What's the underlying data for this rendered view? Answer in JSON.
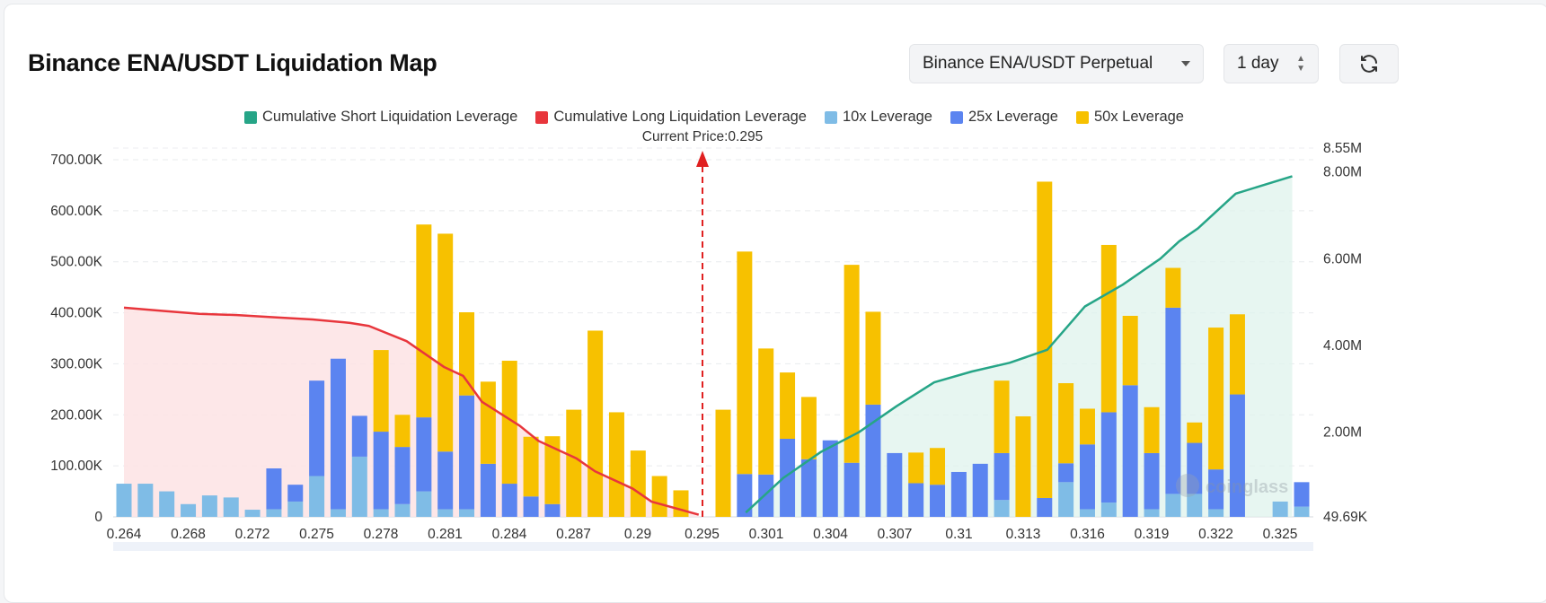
{
  "header": {
    "title": "Binance ENA/USDT Liquidation Map",
    "exchange_select": "Binance ENA/USDT Perpetual",
    "range_select": "1 day"
  },
  "icons": {
    "dropdown": "caret-down-icon",
    "stepper": "up-down-icon",
    "refresh": "refresh-icon"
  },
  "colors": {
    "short_cum": "#26a587",
    "long_cum": "#e8363c",
    "lev10": "#7fbce6",
    "lev25": "#5b84f0",
    "lev50": "#f7c100"
  },
  "chart_data": {
    "type": "bar",
    "current_price_label": "Current Price:0.295",
    "current_price": 0.295,
    "left_axis": {
      "ticks": [
        "700.00K",
        "600.00K",
        "500.00K",
        "400.00K",
        "300.00K",
        "200.00K",
        "100.00K",
        "0"
      ],
      "ylim": [
        0,
        700000
      ]
    },
    "right_axis": {
      "ticks": [
        "8.55M",
        "8.00M",
        "6.00M",
        "4.00M",
        "2.00M",
        "49.69K"
      ],
      "ylim": [
        49690,
        8550000
      ]
    },
    "x_ticks": [
      "0.264",
      "0.268",
      "0.272",
      "0.275",
      "0.278",
      "0.281",
      "0.284",
      "0.287",
      "0.29",
      "0.295",
      "0.301",
      "0.304",
      "0.307",
      "0.31",
      "0.313",
      "0.316",
      "0.319",
      "0.322",
      "0.325"
    ],
    "legend": [
      {
        "name": "Cumulative Short Liquidation Leverage",
        "color": "#26a587"
      },
      {
        "name": "Cumulative Long Liquidation Leverage",
        "color": "#e8363c"
      },
      {
        "name": "10x Leverage",
        "color": "#7fbce6"
      },
      {
        "name": "25x Leverage",
        "color": "#5b84f0"
      },
      {
        "name": "50x Leverage",
        "color": "#f7c100"
      }
    ],
    "bars_left": [
      {
        "lev10": 65000,
        "lev25": 0,
        "lev50": 0
      },
      {
        "lev10": 65000,
        "lev25": 0,
        "lev50": 0
      },
      {
        "lev10": 50000,
        "lev25": 0,
        "lev50": 0
      },
      {
        "lev10": 25000,
        "lev25": 0,
        "lev50": 0
      },
      {
        "lev10": 42000,
        "lev25": 0,
        "lev50": 0
      },
      {
        "lev10": 38000,
        "lev25": 0,
        "lev50": 0
      },
      {
        "lev10": 14000,
        "lev25": 0,
        "lev50": 0
      },
      {
        "lev10": 15000,
        "lev25": 80000,
        "lev50": 0
      },
      {
        "lev10": 30000,
        "lev25": 33000,
        "lev50": 0
      },
      {
        "lev10": 80000,
        "lev25": 187000,
        "lev50": 0
      },
      {
        "lev10": 15000,
        "lev25": 295000,
        "lev50": 0
      },
      {
        "lev10": 118000,
        "lev25": 80000,
        "lev50": 0
      },
      {
        "lev10": 15000,
        "lev25": 152000,
        "lev50": 160000
      },
      {
        "lev10": 25000,
        "lev25": 112000,
        "lev50": 63000
      },
      {
        "lev10": 50000,
        "lev25": 145000,
        "lev50": 378000
      },
      {
        "lev10": 15000,
        "lev25": 113000,
        "lev50": 427000
      },
      {
        "lev10": 15000,
        "lev25": 223000,
        "lev50": 163000
      },
      {
        "lev10": 0,
        "lev25": 104000,
        "lev50": 161000
      },
      {
        "lev10": 0,
        "lev25": 65000,
        "lev50": 241000
      },
      {
        "lev10": 0,
        "lev25": 40000,
        "lev50": 117000
      },
      {
        "lev10": 0,
        "lev25": 25000,
        "lev50": 133000
      },
      {
        "lev10": 0,
        "lev25": 0,
        "lev50": 210000
      },
      {
        "lev10": 0,
        "lev25": 0,
        "lev50": 365000
      },
      {
        "lev10": 0,
        "lev25": 0,
        "lev50": 205000
      },
      {
        "lev10": 0,
        "lev25": 0,
        "lev50": 130000
      },
      {
        "lev10": 0,
        "lev25": 0,
        "lev50": 80000
      },
      {
        "lev10": 0,
        "lev25": 0,
        "lev50": 52000
      }
    ],
    "bars_right": [
      {
        "lev10": 0,
        "lev25": 0,
        "lev50": 210000
      },
      {
        "lev10": 0,
        "lev25": 84000,
        "lev50": 436000
      },
      {
        "lev10": 0,
        "lev25": 83000,
        "lev50": 247000
      },
      {
        "lev10": 0,
        "lev25": 153000,
        "lev50": 130000
      },
      {
        "lev10": 0,
        "lev25": 113000,
        "lev50": 122000
      },
      {
        "lev10": 0,
        "lev25": 150000,
        "lev50": 0
      },
      {
        "lev10": 0,
        "lev25": 106000,
        "lev50": 388000
      },
      {
        "lev10": 0,
        "lev25": 220000,
        "lev50": 182000
      },
      {
        "lev10": 0,
        "lev25": 125000,
        "lev50": 0
      },
      {
        "lev10": 0,
        "lev25": 66000,
        "lev50": 60000
      },
      {
        "lev10": 0,
        "lev25": 63000,
        "lev50": 72000
      },
      {
        "lev10": 0,
        "lev25": 88000,
        "lev50": 0
      },
      {
        "lev10": 0,
        "lev25": 104000,
        "lev50": 0
      },
      {
        "lev10": 33000,
        "lev25": 92000,
        "lev50": 142000
      },
      {
        "lev10": 0,
        "lev25": 0,
        "lev50": 197000
      },
      {
        "lev10": 0,
        "lev25": 37000,
        "lev50": 620000
      },
      {
        "lev10": 68000,
        "lev25": 37000,
        "lev50": 157000
      },
      {
        "lev10": 15000,
        "lev25": 127000,
        "lev50": 70000
      },
      {
        "lev10": 28000,
        "lev25": 177000,
        "lev50": 328000
      },
      {
        "lev10": 0,
        "lev25": 258000,
        "lev50": 136000
      },
      {
        "lev10": 15000,
        "lev25": 110000,
        "lev50": 90000
      },
      {
        "lev10": 45000,
        "lev25": 365000,
        "lev50": 78000
      },
      {
        "lev10": 45000,
        "lev25": 100000,
        "lev50": 40000
      },
      {
        "lev10": 15000,
        "lev25": 78000,
        "lev50": 278000
      },
      {
        "lev10": 0,
        "lev25": 240000,
        "lev50": 157000
      },
      {
        "lev10": 0,
        "lev25": 0,
        "lev50": 0
      },
      {
        "lev10": 30000,
        "lev25": 0,
        "lev50": 0
      },
      {
        "lev10": 20000,
        "lev25": 48000,
        "lev50": 0
      }
    ],
    "long_cumulative": [
      [
        0.264,
        4870000
      ],
      [
        0.266,
        4800000
      ],
      [
        0.268,
        4730000
      ],
      [
        0.27,
        4700000
      ],
      [
        0.272,
        4650000
      ],
      [
        0.274,
        4600000
      ],
      [
        0.276,
        4520000
      ],
      [
        0.277,
        4450000
      ],
      [
        0.279,
        4100000
      ],
      [
        0.28,
        3800000
      ],
      [
        0.281,
        3500000
      ],
      [
        0.282,
        3300000
      ],
      [
        0.283,
        2700000
      ],
      [
        0.285,
        2150000
      ],
      [
        0.286,
        1800000
      ],
      [
        0.288,
        1400000
      ],
      [
        0.289,
        1100000
      ],
      [
        0.291,
        700000
      ],
      [
        0.292,
        400000
      ],
      [
        0.294,
        160000
      ],
      [
        0.2945,
        100000
      ]
    ],
    "short_cumulative": [
      [
        0.297,
        150000
      ],
      [
        0.299,
        950000
      ],
      [
        0.301,
        1550000
      ],
      [
        0.303,
        2000000
      ],
      [
        0.305,
        2600000
      ],
      [
        0.307,
        3150000
      ],
      [
        0.309,
        3400000
      ],
      [
        0.311,
        3600000
      ],
      [
        0.313,
        3900000
      ],
      [
        0.315,
        4900000
      ],
      [
        0.317,
        5400000
      ],
      [
        0.319,
        6000000
      ],
      [
        0.32,
        6400000
      ],
      [
        0.321,
        6700000
      ],
      [
        0.323,
        7500000
      ],
      [
        0.326,
        7900000
      ]
    ],
    "watermark": "coinglass"
  }
}
